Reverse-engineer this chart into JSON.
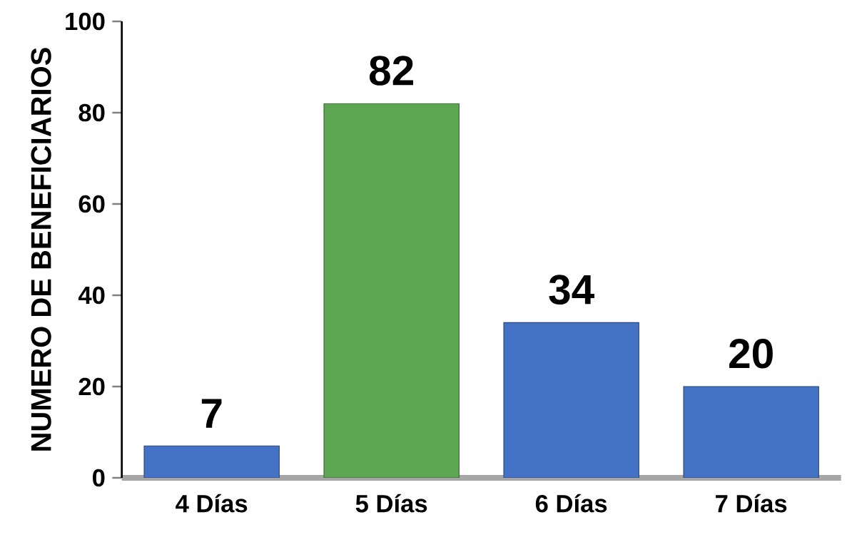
{
  "chart_data": {
    "type": "bar",
    "ylabel": "NUMERO DE BENEFICIARIOS",
    "categories": [
      "4 Días",
      "5 Días",
      "6 Días",
      "7 Días"
    ],
    "values": [
      7,
      82,
      34,
      20
    ],
    "colors": [
      "#4472c4",
      "#5ea653",
      "#4472c4",
      "#4472c4"
    ],
    "ylim": [
      0,
      100
    ],
    "yticks": [
      0,
      20,
      40,
      60,
      80,
      100
    ],
    "data_labels": true
  }
}
